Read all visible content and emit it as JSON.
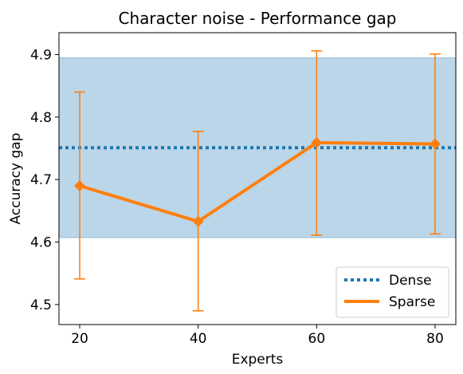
{
  "chart_data": {
    "type": "line",
    "title": "Character noise - Performance gap",
    "xlabel": "Experts",
    "ylabel": "Accuracy gap",
    "x": [
      20,
      40,
      60,
      80
    ],
    "xlim": [
      16.5,
      83.5
    ],
    "ylim": [
      4.468,
      4.935
    ],
    "xticks": [
      "20",
      "40",
      "60",
      "80"
    ],
    "yticks": [
      "4.5",
      "4.6",
      "4.7",
      "4.8",
      "4.9"
    ],
    "grid": false,
    "legend_position": "lower right",
    "series": [
      {
        "name": "Dense",
        "style": "dotted",
        "color": "#1f77b4",
        "value": 4.751,
        "band": [
          4.607,
          4.895
        ],
        "band_color": "#1f77b4"
      },
      {
        "name": "Sparse",
        "style": "solid",
        "marker": "diamond",
        "color": "#ff7f0e",
        "values": [
          4.69,
          4.633,
          4.759,
          4.757
        ],
        "error_low": [
          4.541,
          4.49,
          4.611,
          4.613
        ],
        "error_high": [
          4.84,
          4.777,
          4.906,
          4.901
        ]
      }
    ]
  }
}
